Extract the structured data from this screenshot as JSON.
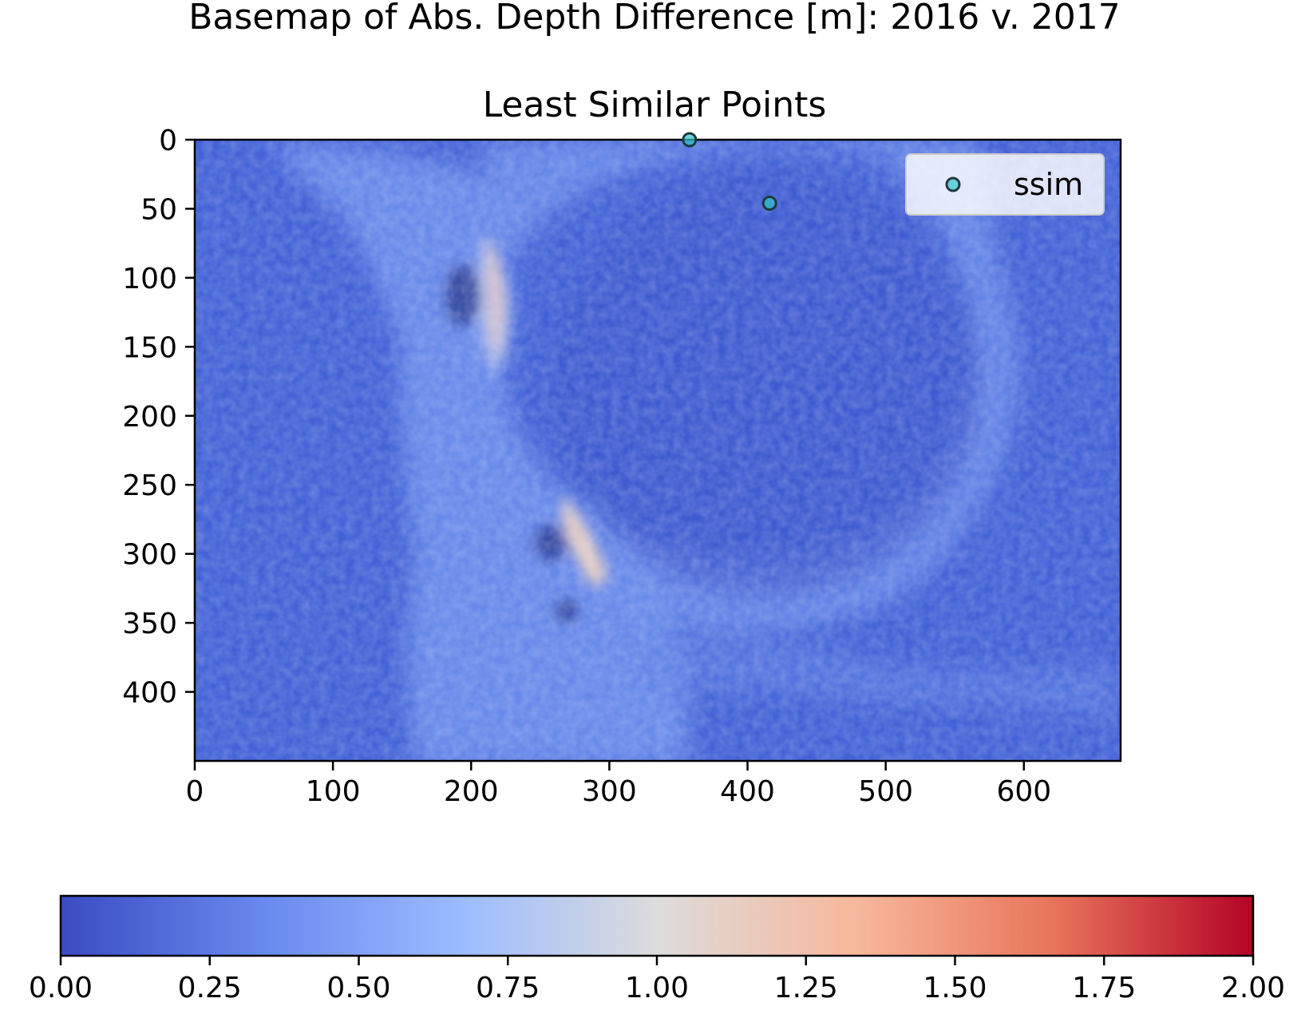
{
  "chart_data": [
    {
      "type": "heatmap",
      "title": "Basemap of Abs. Depth Difference [m]: 2016 v. 2017",
      "subtitle": "Least Similar Points",
      "xlabel": "",
      "ylabel": "",
      "xlim": [
        0,
        670
      ],
      "ylim": [
        450,
        0
      ],
      "x_ticks": [
        0,
        100,
        200,
        300,
        400,
        500,
        600
      ],
      "y_ticks": [
        0,
        50,
        100,
        150,
        200,
        250,
        300,
        350,
        400
      ],
      "colormap": "coolwarm",
      "grid": false,
      "legend": {
        "placement": "upper right",
        "entries": [
          "ssim"
        ]
      },
      "series": [
        {
          "name": "ssim",
          "type": "scatter",
          "color": "#33c3cc",
          "points": [
            {
              "x": 358,
              "y": 0
            },
            {
              "x": 416,
              "y": 46
            }
          ]
        }
      ],
      "image_description_values": {
        "background_level": 0.12,
        "max_level_visible": 1.25
      }
    },
    {
      "type": "colorbar",
      "orientation": "horizontal",
      "range": [
        0.0,
        2.0
      ],
      "ticks": [
        "0.00",
        "0.25",
        "0.50",
        "0.75",
        "1.00",
        "1.25",
        "1.50",
        "1.75",
        "2.00"
      ],
      "colors": [
        "#3b4cc0",
        "#7396f5",
        "#b0cbfc",
        "#dddcdc",
        "#f6bfa6",
        "#ee8669",
        "#b40426"
      ]
    }
  ]
}
